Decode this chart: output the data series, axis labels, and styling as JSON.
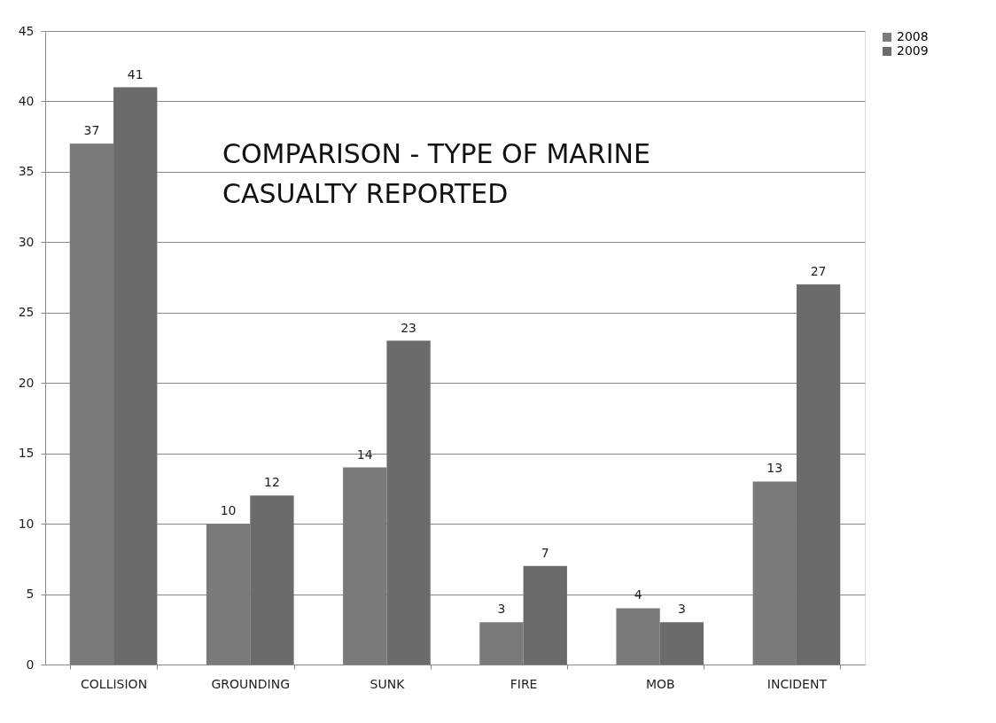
{
  "chart_data": {
    "type": "bar",
    "title": "COMPARISON - TYPE OF MARINE CASUALTY REPORTED",
    "categories": [
      "COLLISION",
      "GROUNDING",
      "SUNK",
      "FIRE",
      "MOB",
      "INCIDENT"
    ],
    "series": [
      {
        "name": "2008",
        "color": "#7a7a7a",
        "values": [
          37,
          10,
          14,
          3,
          4,
          13
        ]
      },
      {
        "name": "2009",
        "color": "#6b6b6b",
        "values": [
          41,
          12,
          23,
          7,
          3,
          27
        ]
      }
    ],
    "ylim": [
      0,
      45
    ],
    "yticks": [
      0,
      5,
      10,
      15,
      20,
      25,
      30,
      35,
      40,
      45
    ],
    "grid": "y",
    "legend": "right",
    "data_labels": true
  }
}
